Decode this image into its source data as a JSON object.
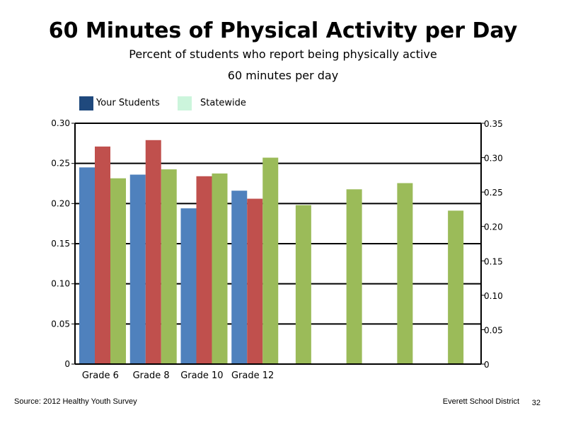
{
  "title": "60 Minutes of Physical Activity per Day",
  "subtitle_line1": "Percent of students who report being physically active",
  "subtitle_line2": "60 minutes per day",
  "legend": [
    {
      "name": "Your Students",
      "color": "#1f497d"
    },
    {
      "name": "Statewide",
      "color": "#ccf5dc"
    }
  ],
  "footer": {
    "source": "Source: 2012 Healthy Youth Survey",
    "district": "Everett School District",
    "page": "32"
  },
  "chart_data": {
    "type": "bar",
    "categories": [
      "Grade 6",
      "Grade 8",
      "Grade 10",
      "Grade 12",
      "",
      "",
      "",
      ""
    ],
    "primary_axis": {
      "ylim": [
        0,
        0.3
      ],
      "ticks": [
        "0.30",
        "0.25",
        "0.20",
        "0.15",
        "0.10",
        "0.05",
        "0"
      ]
    },
    "secondary_axis": {
      "ylim": [
        0,
        0.35
      ],
      "ticks": [
        "0.35",
        "0.30",
        "0.25",
        "0.20",
        "0.15",
        "0.10",
        "0.05",
        "0"
      ]
    },
    "grid": true,
    "series": [
      {
        "color": "#4f81bd",
        "axis": "primary",
        "values": [
          0.245,
          0.236,
          0.194,
          0.216,
          null,
          null,
          null,
          null
        ]
      },
      {
        "color": "#c0504d",
        "axis": "primary",
        "values": [
          0.271,
          0.279,
          0.234,
          0.206,
          null,
          null,
          null,
          null
        ]
      },
      {
        "color": "#9bbb59",
        "axis": "secondary",
        "values": [
          0.27,
          0.283,
          0.277,
          0.3,
          0.231,
          0.254,
          0.263,
          0.223
        ]
      }
    ]
  }
}
